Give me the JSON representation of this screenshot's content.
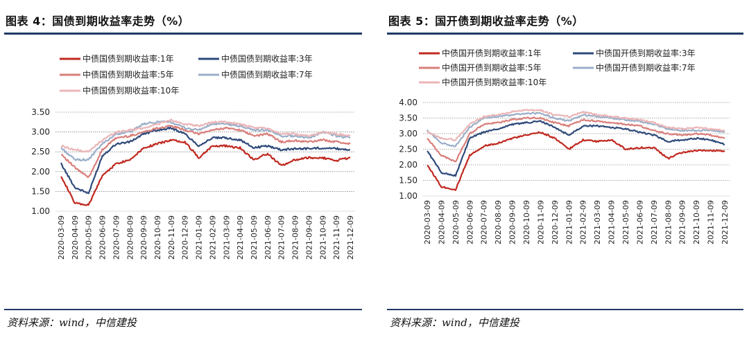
{
  "colors": {
    "1y": "#c0281f",
    "3y": "#2e4a7a",
    "5y": "#d97e7a",
    "7y": "#9aaec8",
    "10y": "#ebb5b7",
    "rule": "#1f3864"
  },
  "x_tick_labels": [
    "2020-03-09",
    "2020-04-09",
    "2020-05-09",
    "2020-06-09",
    "2020-07-09",
    "2020-08-09",
    "2020-09-09",
    "2020-10-09",
    "2020-11-09",
    "2020-12-09",
    "2021-01-09",
    "2021-02-09",
    "2021-03-09",
    "2021-04-09",
    "2021-05-09",
    "2021-06-09",
    "2021-07-09",
    "2021-08-09",
    "2021-09-09",
    "2021-10-09",
    "2021-11-09",
    "2021-12-09"
  ],
  "chart_data": [
    {
      "type": "line",
      "title": "图表 4：国债到期收益率走势（%）",
      "source": "资料来源：wind，中信建投",
      "ylim": [
        1.0,
        3.5
      ],
      "yticks": [
        "1.00",
        "1.50",
        "2.00",
        "2.50",
        "3.00",
        "3.50"
      ],
      "x": [
        "2020-03-09",
        "2020-04-09",
        "2020-05-09",
        "2020-06-09",
        "2020-07-09",
        "2020-08-09",
        "2020-09-09",
        "2020-10-09",
        "2020-11-09",
        "2020-12-09",
        "2021-01-09",
        "2021-02-09",
        "2021-03-09",
        "2021-04-09",
        "2021-05-09",
        "2021-06-09",
        "2021-07-09",
        "2021-08-09",
        "2021-09-09",
        "2021-10-09",
        "2021-11-09",
        "2021-12-09"
      ],
      "grid": "horizontal",
      "legend_position": "top",
      "series": [
        {
          "name": "中债国债到期收益率:1年",
          "key": "1y",
          "values": [
            1.9,
            1.2,
            1.15,
            1.9,
            2.2,
            2.3,
            2.6,
            2.7,
            2.8,
            2.75,
            2.35,
            2.65,
            2.65,
            2.6,
            2.3,
            2.45,
            2.15,
            2.3,
            2.35,
            2.35,
            2.28,
            2.35
          ]
        },
        {
          "name": "中债国债到期收益率:3年",
          "key": "3y",
          "values": [
            2.2,
            1.6,
            1.45,
            2.4,
            2.7,
            2.75,
            2.95,
            3.05,
            3.1,
            2.95,
            2.65,
            2.85,
            2.85,
            2.8,
            2.6,
            2.65,
            2.55,
            2.58,
            2.58,
            2.6,
            2.58,
            2.55
          ]
        },
        {
          "name": "中债国债到期收益率:5年",
          "key": "5y",
          "values": [
            2.45,
            2.1,
            1.85,
            2.55,
            2.85,
            2.9,
            3.0,
            3.1,
            3.15,
            3.05,
            2.95,
            3.05,
            3.1,
            3.05,
            2.9,
            2.95,
            2.75,
            2.78,
            2.75,
            2.8,
            2.75,
            2.7
          ]
        },
        {
          "name": "中债国债到期收益率:7年",
          "key": "7y",
          "values": [
            2.6,
            2.3,
            2.3,
            2.7,
            2.95,
            3.0,
            3.2,
            3.25,
            3.25,
            3.1,
            3.05,
            3.2,
            3.2,
            3.15,
            3.05,
            3.05,
            2.9,
            2.9,
            2.85,
            3.0,
            2.9,
            2.85
          ]
        },
        {
          "name": "中债国债到期收益率:10年",
          "key": "10y",
          "values": [
            2.65,
            2.55,
            2.5,
            2.8,
            3.0,
            3.05,
            3.1,
            3.2,
            3.3,
            3.2,
            3.15,
            3.25,
            3.25,
            3.2,
            3.1,
            3.1,
            2.95,
            2.95,
            2.9,
            3.0,
            2.95,
            2.9
          ]
        }
      ]
    },
    {
      "type": "line",
      "title": "图表 5：国开债到期收益率走势（%）",
      "source": "资料来源：wind，中信建投",
      "ylim": [
        1.0,
        4.0
      ],
      "yticks": [
        "1.00",
        "1.50",
        "2.00",
        "2.50",
        "3.00",
        "3.50",
        "4.00"
      ],
      "x": [
        "2020-03-09",
        "2020-04-09",
        "2020-05-09",
        "2020-06-09",
        "2020-07-09",
        "2020-08-09",
        "2020-09-09",
        "2020-10-09",
        "2020-11-09",
        "2020-12-09",
        "2021-01-09",
        "2021-02-09",
        "2021-03-09",
        "2021-04-09",
        "2021-05-09",
        "2021-06-09",
        "2021-07-09",
        "2021-08-09",
        "2021-09-09",
        "2021-10-09",
        "2021-11-09",
        "2021-12-09"
      ],
      "grid": "horizontal",
      "legend_position": "top",
      "series": [
        {
          "name": "中债国开债到期收益率:1年",
          "key": "1y",
          "values": [
            2.0,
            1.3,
            1.2,
            2.3,
            2.6,
            2.7,
            2.85,
            2.95,
            3.05,
            2.85,
            2.5,
            2.8,
            2.75,
            2.8,
            2.5,
            2.55,
            2.55,
            2.2,
            2.4,
            2.45,
            2.45,
            2.45
          ]
        },
        {
          "name": "中债国开债到期收益率:3年",
          "key": "3y",
          "values": [
            2.45,
            1.75,
            1.65,
            2.85,
            3.05,
            3.15,
            3.3,
            3.35,
            3.4,
            3.2,
            2.95,
            3.25,
            3.25,
            3.2,
            3.15,
            3.05,
            2.95,
            2.75,
            2.8,
            2.85,
            2.8,
            2.65
          ]
        },
        {
          "name": "中债国开债到期收益率:5年",
          "key": "5y",
          "values": [
            2.85,
            2.3,
            2.1,
            3.0,
            3.3,
            3.35,
            3.45,
            3.5,
            3.5,
            3.35,
            3.25,
            3.45,
            3.4,
            3.35,
            3.3,
            3.25,
            3.1,
            3.0,
            2.95,
            3.0,
            2.95,
            2.85
          ]
        },
        {
          "name": "中债国开债到期收益率:7年",
          "key": "7y",
          "values": [
            3.1,
            2.7,
            2.6,
            3.2,
            3.5,
            3.55,
            3.6,
            3.65,
            3.65,
            3.5,
            3.4,
            3.6,
            3.55,
            3.5,
            3.45,
            3.4,
            3.3,
            3.15,
            3.1,
            3.1,
            3.1,
            3.05
          ]
        },
        {
          "name": "中债国开债到期收益率:10年",
          "key": "10y",
          "values": [
            3.05,
            2.85,
            2.8,
            3.3,
            3.55,
            3.6,
            3.7,
            3.75,
            3.75,
            3.6,
            3.55,
            3.7,
            3.6,
            3.55,
            3.5,
            3.45,
            3.35,
            3.2,
            3.15,
            3.2,
            3.15,
            3.1
          ]
        }
      ]
    }
  ]
}
